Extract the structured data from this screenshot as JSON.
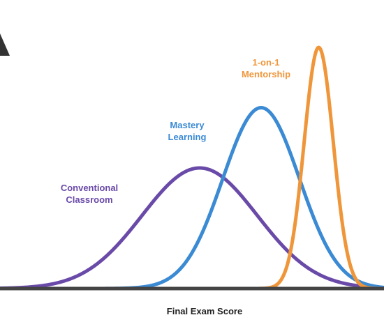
{
  "chart_data": {
    "type": "line",
    "title": "",
    "xlabel": "Final Exam Score",
    "ylabel": "",
    "grid": false,
    "legend": "none",
    "series": [
      {
        "name": "Conventional Classroom",
        "label_lines": [
          "Conventional",
          "Classroom"
        ],
        "color": "#6a4aa8",
        "mean": 0.52,
        "sd": 0.15,
        "peak": 0.5
      },
      {
        "name": "Mastery Learning",
        "label_lines": [
          "Mastery",
          "Learning"
        ],
        "color": "#3b8ad4",
        "mean": 0.68,
        "sd": 0.1,
        "peak": 0.75
      },
      {
        "name": "1-on-1 Mentorship",
        "label_lines": [
          "1-on-1",
          "Mentorship"
        ],
        "color": "#f0963a",
        "mean": 0.83,
        "sd": 0.038,
        "peak": 1.0
      }
    ]
  }
}
